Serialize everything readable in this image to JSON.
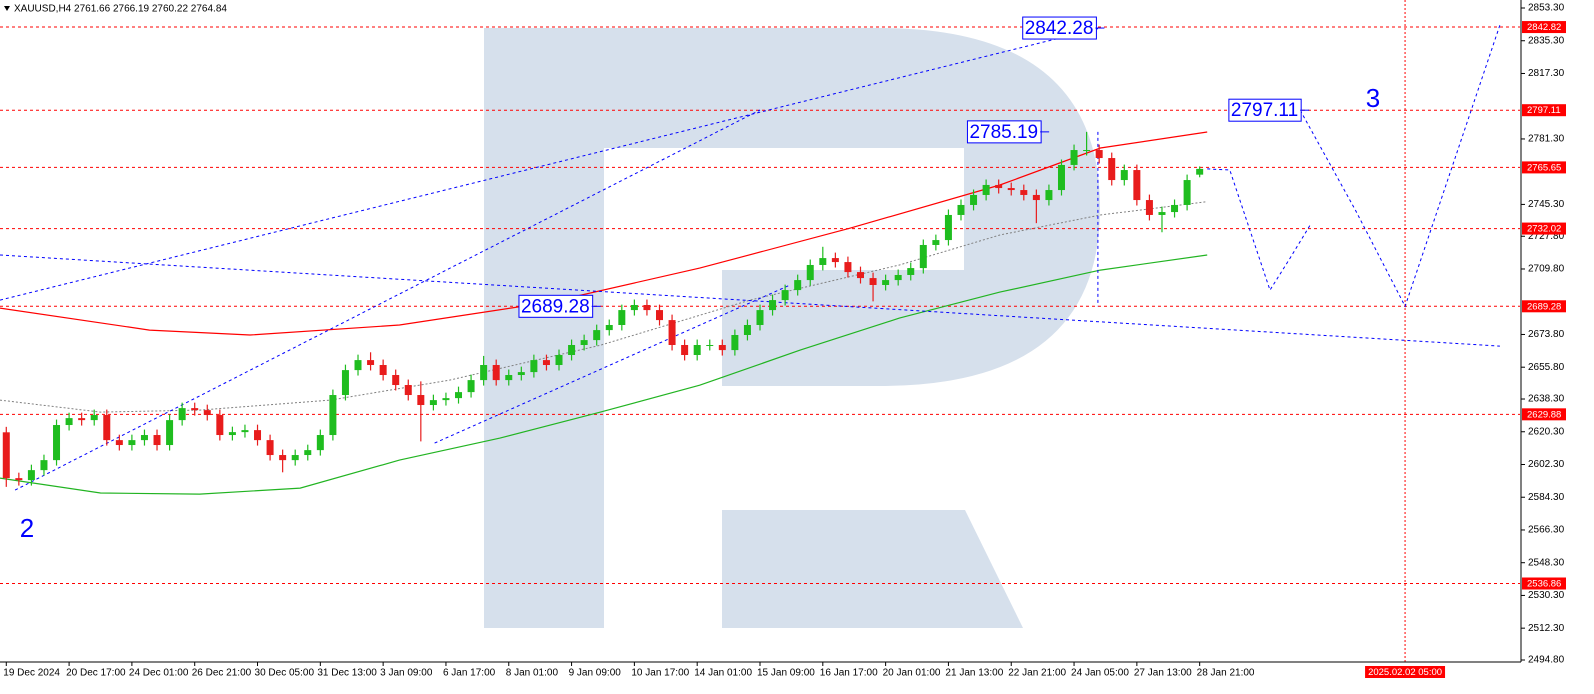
{
  "chart_data": {
    "type": "candlestick",
    "title": "XAUUSD,H4 2761.66 2766.19 2760.22 2764.84",
    "up_color": "#1fbd1f",
    "down_color": "#e81c1c",
    "xlim": [
      -0.5,
      120.5
    ],
    "ylim": [
      2494.8,
      2853.3
    ],
    "x": [
      0,
      1,
      2,
      3,
      4,
      5,
      6,
      7,
      8,
      9,
      10,
      11,
      12,
      13,
      14,
      15,
      16,
      17,
      18,
      19,
      20,
      21,
      22,
      23,
      24,
      25,
      26,
      27,
      28,
      29,
      30,
      31,
      32,
      33,
      34,
      35,
      36,
      37,
      38,
      39,
      40,
      41,
      42,
      43,
      44,
      45,
      46,
      47,
      48,
      49,
      50,
      51,
      52,
      53,
      54,
      55,
      56,
      57,
      58,
      59,
      60,
      61,
      62,
      63,
      64,
      65,
      66,
      67,
      68,
      69,
      70,
      71,
      72,
      73,
      74,
      75,
      76,
      77,
      78,
      79,
      80,
      81,
      82,
      83,
      84,
      85,
      86,
      87,
      88,
      89,
      90,
      91,
      92,
      93,
      94,
      95
    ],
    "open": [
      2620.0,
      2594.8,
      2593.7,
      2599.2,
      2604.7,
      2624.0,
      2627.8,
      2626.7,
      2629.5,
      2615.7,
      2613.0,
      2615.7,
      2618.5,
      2613.0,
      2626.7,
      2633.3,
      2632.2,
      2629.5,
      2618.5,
      2620.1,
      2621.2,
      2615.7,
      2607.5,
      2604.7,
      2607.5,
      2610.2,
      2618.5,
      2640.5,
      2654.2,
      2659.7,
      2657.0,
      2651.5,
      2646.0,
      2640.5,
      2635.0,
      2637.7,
      2638.8,
      2642.1,
      2648.7,
      2657.0,
      2648.7,
      2651.5,
      2653.1,
      2659.7,
      2657.0,
      2662.5,
      2668.0,
      2670.7,
      2676.2,
      2679.0,
      2687.2,
      2690.0,
      2687.2,
      2681.7,
      2668.0,
      2662.5,
      2668.0,
      2668.0,
      2665.2,
      2673.5,
      2679.0,
      2687.2,
      2692.7,
      2698.2,
      2703.7,
      2712.0,
      2715.8,
      2713.6,
      2708.1,
      2704.8,
      2701.0,
      2703.7,
      2706.5,
      2710.3,
      2723.0,
      2725.7,
      2739.5,
      2745.0,
      2750.5,
      2756.0,
      2754.3,
      2753.2,
      2750.5,
      2747.7,
      2753.2,
      2767.0,
      2775.2,
      2775.2,
      2770.8,
      2758.7,
      2764.2,
      2747.7,
      2739.5,
      2741.1,
      2745.0,
      2761.66
    ],
    "high": [
      2623.0,
      2597.8,
      2602.2,
      2607.7,
      2627.0,
      2630.8,
      2630.8,
      2632.5,
      2632.5,
      2618.7,
      2618.7,
      2621.5,
      2621.5,
      2629.7,
      2636.3,
      2636.3,
      2635.2,
      2632.5,
      2623.1,
      2624.2,
      2624.2,
      2618.7,
      2610.5,
      2610.5,
      2613.2,
      2621.5,
      2643.5,
      2657.2,
      2662.7,
      2664.0,
      2660.0,
      2654.5,
      2649.0,
      2648.0,
      2640.7,
      2641.8,
      2645.1,
      2651.7,
      2662.0,
      2660.0,
      2654.5,
      2656.1,
      2662.7,
      2662.7,
      2665.5,
      2671.0,
      2673.7,
      2679.2,
      2682.0,
      2690.2,
      2693.0,
      2693.0,
      2690.2,
      2684.7,
      2671.0,
      2671.0,
      2671.0,
      2671.0,
      2676.5,
      2682.0,
      2690.2,
      2695.7,
      2701.2,
      2706.7,
      2715.0,
      2722.0,
      2718.8,
      2716.6,
      2711.1,
      2707.8,
      2706.7,
      2709.5,
      2713.3,
      2726.0,
      2728.7,
      2742.5,
      2748.0,
      2753.5,
      2759.0,
      2759.0,
      2757.3,
      2756.2,
      2753.5,
      2756.2,
      2770.0,
      2778.2,
      2785.19,
      2778.2,
      2773.8,
      2767.2,
      2767.2,
      2750.7,
      2744.1,
      2748.0,
      2761.7,
      2766.19
    ],
    "low": [
      2590.0,
      2590.7,
      2590.7,
      2596.2,
      2601.7,
      2621.0,
      2623.7,
      2623.7,
      2612.7,
      2610.0,
      2610.0,
      2612.7,
      2610.0,
      2610.0,
      2623.7,
      2629.2,
      2626.5,
      2615.5,
      2615.5,
      2617.1,
      2612.7,
      2604.5,
      2598.0,
      2601.7,
      2604.5,
      2607.2,
      2615.5,
      2637.5,
      2651.2,
      2654.0,
      2648.5,
      2643.0,
      2637.5,
      2615.0,
      2632.0,
      2634.7,
      2635.8,
      2639.1,
      2645.7,
      2645.7,
      2645.7,
      2648.5,
      2650.1,
      2654.0,
      2654.0,
      2659.5,
      2665.0,
      2667.7,
      2673.2,
      2676.0,
      2684.2,
      2684.2,
      2678.7,
      2665.0,
      2659.5,
      2659.5,
      2665.0,
      2662.2,
      2662.2,
      2670.5,
      2676.0,
      2684.2,
      2689.7,
      2695.2,
      2700.7,
      2709.0,
      2710.6,
      2705.1,
      2701.8,
      2692.0,
      2698.0,
      2700.7,
      2703.5,
      2707.3,
      2720.0,
      2722.7,
      2736.5,
      2742.0,
      2747.5,
      2751.3,
      2750.2,
      2747.5,
      2735.0,
      2744.7,
      2750.2,
      2764.0,
      2772.2,
      2767.8,
      2755.7,
      2755.7,
      2744.7,
      2736.5,
      2730.0,
      2738.1,
      2742.0,
      2760.22
    ],
    "close": [
      2594.8,
      2593.7,
      2599.2,
      2604.7,
      2624.0,
      2627.8,
      2626.7,
      2629.5,
      2615.7,
      2613.0,
      2615.7,
      2618.5,
      2613.0,
      2626.7,
      2633.3,
      2632.2,
      2629.5,
      2618.5,
      2620.1,
      2621.2,
      2615.7,
      2607.5,
      2604.7,
      2607.5,
      2610.2,
      2618.5,
      2640.5,
      2654.2,
      2659.7,
      2657.0,
      2651.5,
      2646.0,
      2640.5,
      2635.0,
      2637.7,
      2638.8,
      2642.1,
      2648.7,
      2657.0,
      2648.7,
      2651.5,
      2653.1,
      2659.7,
      2657.0,
      2662.5,
      2668.0,
      2670.7,
      2676.2,
      2679.0,
      2687.2,
      2690.0,
      2687.2,
      2681.7,
      2668.0,
      2662.5,
      2668.0,
      2668.0,
      2665.2,
      2673.5,
      2679.0,
      2687.2,
      2692.7,
      2698.2,
      2703.7,
      2712.0,
      2715.8,
      2713.6,
      2708.1,
      2704.8,
      2701.0,
      2703.7,
      2706.5,
      2710.3,
      2723.0,
      2725.7,
      2739.5,
      2745.0,
      2750.5,
      2756.0,
      2754.3,
      2753.2,
      2750.5,
      2747.7,
      2753.2,
      2767.0,
      2775.2,
      2775.2,
      2770.8,
      2758.7,
      2764.2,
      2747.7,
      2739.5,
      2741.1,
      2745.0,
      2758.7,
      2764.84
    ],
    "xticks": [
      {
        "value": 0,
        "label": "19 Dec 2024"
      },
      {
        "value": 5,
        "label": "20 Dec 17:00"
      },
      {
        "value": 10,
        "label": "24 Dec 01:00"
      },
      {
        "value": 15,
        "label": "26 Dec 21:00"
      },
      {
        "value": 20,
        "label": "30 Dec 05:00"
      },
      {
        "value": 25,
        "label": "31 Dec 13:00"
      },
      {
        "value": 30,
        "label": "3 Jan 09:00"
      },
      {
        "value": 35,
        "label": "6 Jan 17:00"
      },
      {
        "value": 40,
        "label": "8 Jan 01:00"
      },
      {
        "value": 45,
        "label": "9 Jan 09:00"
      },
      {
        "value": 50,
        "label": "10 Jan 17:00"
      },
      {
        "value": 55,
        "label": "14 Jan 01:00"
      },
      {
        "value": 60,
        "label": "15 Jan 09:00"
      },
      {
        "value": 65,
        "label": "16 Jan 17:00"
      },
      {
        "value": 70,
        "label": "20 Jan 01:00"
      },
      {
        "value": 75,
        "label": "21 Jan 13:00"
      },
      {
        "value": 80,
        "label": "22 Jan 21:00"
      },
      {
        "value": 85,
        "label": "24 Jan 05:00"
      },
      {
        "value": 90,
        "label": "27 Jan 13:00"
      },
      {
        "value": 95,
        "label": "28 Jan 21:00"
      }
    ],
    "yticks": [
      {
        "value": 2853.3,
        "label": "2853.30"
      },
      {
        "value": 2835.3,
        "label": "2835.30"
      },
      {
        "value": 2817.3,
        "label": "2817.30"
      },
      {
        "value": 2781.3,
        "label": "2781.30"
      },
      {
        "value": 2745.3,
        "label": "2745.30"
      },
      {
        "value": 2727.8,
        "label": "2727.80"
      },
      {
        "value": 2709.8,
        "label": "2709.80"
      },
      {
        "value": 2673.8,
        "label": "2673.80"
      },
      {
        "value": 2655.8,
        "label": "2655.80"
      },
      {
        "value": 2638.3,
        "label": "2638.30"
      },
      {
        "value": 2620.3,
        "label": "2620.30"
      },
      {
        "value": 2602.3,
        "label": "2602.30"
      },
      {
        "value": 2584.3,
        "label": "2584.30"
      },
      {
        "value": 2566.3,
        "label": "2566.30"
      },
      {
        "value": 2548.3,
        "label": "2548.30"
      },
      {
        "value": 2530.3,
        "label": "2530.30"
      },
      {
        "value": 2512.3,
        "label": "2512.30"
      },
      {
        "value": 2494.8,
        "label": "2494.80"
      }
    ],
    "levels": [
      {
        "value": 2842.82,
        "color": "#ff0000"
      },
      {
        "value": 2797.11,
        "color": "#ff0000"
      },
      {
        "value": 2765.65,
        "color": "#ff0000"
      },
      {
        "value": 2732.02,
        "color": "#ff0000"
      },
      {
        "value": 2689.28,
        "color": "#ff0000"
      },
      {
        "value": 2629.88,
        "color": "#ff0000"
      },
      {
        "value": 2536.86,
        "color": "#ff0000"
      }
    ],
    "lines": [
      {
        "color": "#ff0000",
        "dash": "none",
        "x": [
          -0.5,
          11.4,
          19.4,
          31.3,
          43.3,
          55.2,
          67.2,
          79.1,
          87.1,
          95.6
        ],
        "values": [
          2688.3,
          2676.2,
          2673.5,
          2679.0,
          2691.6,
          2710.3,
          2732.3,
          2756.0,
          2776.3,
          2785.1
        ]
      },
      {
        "color": "#22b422",
        "dash": "none",
        "x": [
          -0.5,
          7.5,
          15.4,
          23.4,
          31.3,
          39.3,
          47.3,
          55.2,
          63.2,
          71.1,
          79.1,
          87.1,
          95.6
        ],
        "values": [
          2594.8,
          2586.6,
          2586.0,
          2589.3,
          2604.7,
          2616.8,
          2631.1,
          2645.9,
          2665.2,
          2682.8,
          2697.1,
          2709.2,
          2717.5
        ]
      },
      {
        "color": "#808080",
        "dash": "2,2",
        "x": [
          -0.5,
          7.5,
          15.4,
          25.8,
          35.3,
          47.3,
          59.2,
          71.1,
          79.1,
          87.1,
          95.6
        ],
        "values": [
          2637.7,
          2631.1,
          2632.2,
          2637.7,
          2648.7,
          2667.9,
          2692.7,
          2712.0,
          2728.5,
          2739.5,
          2746.8
        ]
      },
      {
        "color": "#0000ff",
        "dash": "3,3",
        "x": [
          -0.5,
          87.1
        ],
        "values": [
          2692.7,
          2842.28
        ]
      },
      {
        "color": "#0000ff",
        "dash": "3,3",
        "x": [
          -0.5,
          118.9
        ],
        "values": [
          2717.5,
          2667.4
        ]
      },
      {
        "color": "#0000ff",
        "dash": "3,3",
        "x": [
          0.7,
          60.0
        ],
        "values": [
          2588.2,
          2797.2
        ]
      },
      {
        "color": "#0000ff",
        "dash": "3,3",
        "x": [
          34.1,
          62.4
        ],
        "values": [
          2614.05,
          2701.0
        ]
      },
      {
        "color": "#0000ff",
        "dash": "3,3",
        "x": [
          86.9,
          86.9
        ],
        "values": [
          2785.19,
          2689.28
        ]
      },
      {
        "color": "#0000ff",
        "dash": "3,3",
        "x": [
          95.6,
          97.4,
          99.0,
          100.6,
          102.2,
          103.8
        ],
        "values": [
          2764.84,
          2764.2,
          2731.2,
          2698.2,
          2715.8,
          2734.0
        ]
      },
      {
        "color": "#0000ff",
        "dash": "3,3",
        "x": [
          103.0,
          107.4,
          111.35,
          118.9
        ],
        "values": [
          2797.11,
          2742.2,
          2689.28,
          2843.9
        ]
      }
    ],
    "boxes": [
      {
        "value": 2842.28,
        "x": 86.7
      },
      {
        "value": 2797.11,
        "x": 103.0
      },
      {
        "value": 2785.19,
        "x": 82.3
      },
      {
        "value": 2689.28,
        "x": 46.6
      }
    ],
    "wave_labels": [
      {
        "text": "2",
        "x": 1.65,
        "y": 2566.2
      },
      {
        "text": "3",
        "x": 108.8,
        "y": 2802.7
      }
    ],
    "vline": {
      "x": 111.35,
      "label": "2025.02.02 05:00",
      "color": "#ff0000"
    }
  }
}
